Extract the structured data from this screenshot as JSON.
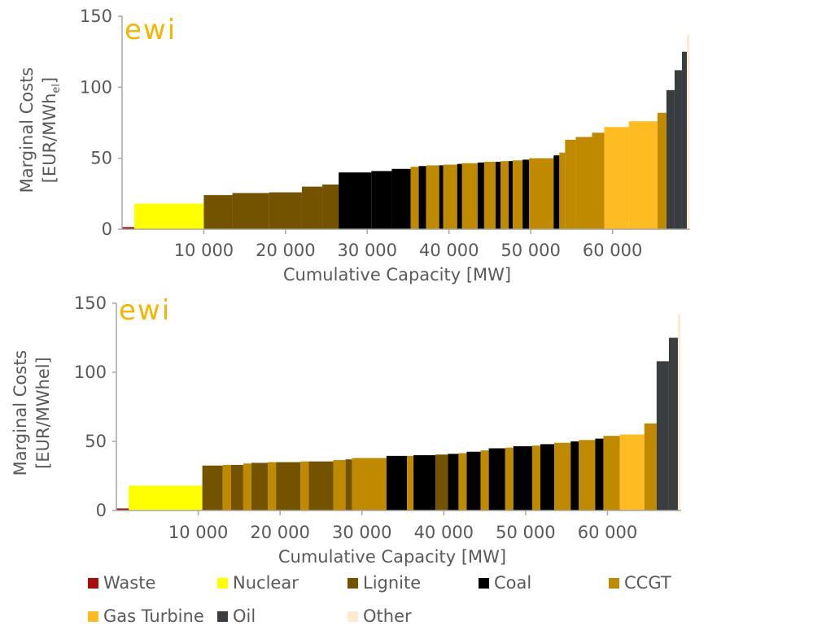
{
  "logo_text": "ewi",
  "colors": {
    "Waste": "#a50f0f",
    "Nuclear": "#ffff00",
    "Lignite": "#745300",
    "Coal": "#000000",
    "CCGT": "#c08a00",
    "Gas Turbine": "#ffbc22",
    "Oil": "#3a3d40",
    "Other": "#fcebd0"
  },
  "legend": [
    "Waste",
    "Nuclear",
    "Lignite",
    "Coal",
    "CCGT",
    "Gas Turbine",
    "Oil",
    "Other"
  ],
  "chart_data": [
    {
      "type": "bar",
      "xlabel": "Cumulative Capacity [MW]",
      "ylabel_line1": "Marginal Costs",
      "ylabel_line2_base": "[EUR/MWh",
      "ylabel_line2_sub": "el",
      "ylabel_line2_end": "]",
      "xlim": [
        0,
        69500
      ],
      "ylim": [
        0,
        150
      ],
      "xticks": [
        10000,
        20000,
        30000,
        40000,
        50000,
        60000
      ],
      "xtick_labels": [
        "10 000",
        "20 000",
        "30 000",
        "40 000",
        "50 000",
        "60 000"
      ],
      "yticks": [
        0,
        50,
        100,
        150
      ],
      "ytick_labels": [
        "0",
        "50",
        "100",
        "150"
      ],
      "segments": [
        {
          "x0": 0,
          "x1": 1500,
          "y": 1.5,
          "type": "Waste"
        },
        {
          "x0": 1500,
          "x1": 10000,
          "y": 18,
          "type": "Nuclear"
        },
        {
          "x0": 10000,
          "x1": 13500,
          "y": 24,
          "type": "Lignite"
        },
        {
          "x0": 13500,
          "x1": 18000,
          "y": 25.5,
          "type": "Lignite"
        },
        {
          "x0": 18000,
          "x1": 22000,
          "y": 26,
          "type": "Lignite"
        },
        {
          "x0": 22000,
          "x1": 24500,
          "y": 30,
          "type": "Lignite"
        },
        {
          "x0": 24500,
          "x1": 26500,
          "y": 31.5,
          "type": "Lignite"
        },
        {
          "x0": 26500,
          "x1": 30500,
          "y": 40,
          "type": "Coal"
        },
        {
          "x0": 30500,
          "x1": 33000,
          "y": 41,
          "type": "Coal"
        },
        {
          "x0": 33000,
          "x1": 35300,
          "y": 42.5,
          "type": "Coal"
        },
        {
          "x0": 35300,
          "x1": 36300,
          "y": 44,
          "type": "CCGT"
        },
        {
          "x0": 36300,
          "x1": 37200,
          "y": 44.5,
          "type": "Coal"
        },
        {
          "x0": 37200,
          "x1": 38800,
          "y": 45,
          "type": "CCGT"
        },
        {
          "x0": 38800,
          "x1": 39300,
          "y": 45,
          "type": "Coal"
        },
        {
          "x0": 39300,
          "x1": 41000,
          "y": 45.5,
          "type": "CCGT"
        },
        {
          "x0": 41000,
          "x1": 41600,
          "y": 46,
          "type": "Coal"
        },
        {
          "x0": 41600,
          "x1": 43500,
          "y": 46.5,
          "type": "CCGT"
        },
        {
          "x0": 43500,
          "x1": 44300,
          "y": 47,
          "type": "Coal"
        },
        {
          "x0": 44300,
          "x1": 45700,
          "y": 47.5,
          "type": "CCGT"
        },
        {
          "x0": 45700,
          "x1": 46300,
          "y": 47.5,
          "type": "Coal"
        },
        {
          "x0": 46300,
          "x1": 47300,
          "y": 48,
          "type": "CCGT"
        },
        {
          "x0": 47300,
          "x1": 47800,
          "y": 48,
          "type": "Coal"
        },
        {
          "x0": 47800,
          "x1": 49000,
          "y": 48.5,
          "type": "CCGT"
        },
        {
          "x0": 49000,
          "x1": 49800,
          "y": 49,
          "type": "Coal"
        },
        {
          "x0": 49800,
          "x1": 52800,
          "y": 50,
          "type": "CCGT"
        },
        {
          "x0": 52800,
          "x1": 53500,
          "y": 52,
          "type": "Coal"
        },
        {
          "x0": 53500,
          "x1": 54200,
          "y": 54,
          "type": "CCGT"
        },
        {
          "x0": 54200,
          "x1": 55500,
          "y": 63,
          "type": "CCGT"
        },
        {
          "x0": 55500,
          "x1": 57500,
          "y": 65,
          "type": "CCGT"
        },
        {
          "x0": 57500,
          "x1": 59000,
          "y": 68,
          "type": "CCGT"
        },
        {
          "x0": 59000,
          "x1": 62000,
          "y": 72,
          "type": "Gas Turbine"
        },
        {
          "x0": 62000,
          "x1": 65500,
          "y": 76,
          "type": "Gas Turbine"
        },
        {
          "x0": 65500,
          "x1": 66600,
          "y": 82,
          "type": "CCGT"
        },
        {
          "x0": 66600,
          "x1": 67600,
          "y": 98,
          "type": "Oil"
        },
        {
          "x0": 67600,
          "x1": 68500,
          "y": 112,
          "type": "Oil"
        },
        {
          "x0": 68500,
          "x1": 69100,
          "y": 125,
          "type": "Oil"
        },
        {
          "x0": 69100,
          "x1": 69400,
          "y": 137,
          "type": "Other"
        }
      ]
    },
    {
      "type": "bar",
      "xlabel": "Cumulative Capacity [MW]",
      "ylabel_line1": "Marginal Costs",
      "ylabel_line2_base": "[EUR/MWhel]",
      "ylabel_line2_sub": "",
      "ylabel_line2_end": "",
      "xlim": [
        0,
        69000
      ],
      "ylim": [
        0,
        150
      ],
      "xticks": [
        10000,
        20000,
        30000,
        40000,
        50000,
        60000
      ],
      "xtick_labels": [
        "10 000",
        "20 000",
        "30 000",
        "40 000",
        "50 000",
        "60 000"
      ],
      "yticks": [
        0,
        50,
        100,
        150
      ],
      "ytick_labels": [
        "0",
        "50",
        "100",
        "150"
      ],
      "segments": [
        {
          "x0": 0,
          "x1": 1500,
          "y": 1.5,
          "type": "Waste"
        },
        {
          "x0": 1500,
          "x1": 10500,
          "y": 18,
          "type": "Nuclear"
        },
        {
          "x0": 10500,
          "x1": 13000,
          "y": 32.5,
          "type": "Lignite"
        },
        {
          "x0": 13000,
          "x1": 14000,
          "y": 33,
          "type": "CCGT"
        },
        {
          "x0": 14000,
          "x1": 15500,
          "y": 33,
          "type": "Lignite"
        },
        {
          "x0": 15500,
          "x1": 16500,
          "y": 34,
          "type": "CCGT"
        },
        {
          "x0": 16500,
          "x1": 18500,
          "y": 34.5,
          "type": "Lignite"
        },
        {
          "x0": 18500,
          "x1": 19500,
          "y": 35,
          "type": "CCGT"
        },
        {
          "x0": 19500,
          "x1": 22500,
          "y": 35,
          "type": "Lignite"
        },
        {
          "x0": 22500,
          "x1": 23500,
          "y": 35.5,
          "type": "CCGT"
        },
        {
          "x0": 23500,
          "x1": 26500,
          "y": 35.5,
          "type": "Lignite"
        },
        {
          "x0": 26500,
          "x1": 28000,
          "y": 36.5,
          "type": "CCGT"
        },
        {
          "x0": 28000,
          "x1": 28800,
          "y": 37,
          "type": "Lignite"
        },
        {
          "x0": 28800,
          "x1": 33000,
          "y": 38,
          "type": "CCGT"
        },
        {
          "x0": 33000,
          "x1": 35500,
          "y": 39.5,
          "type": "Coal"
        },
        {
          "x0": 35500,
          "x1": 36300,
          "y": 39.5,
          "type": "CCGT"
        },
        {
          "x0": 36300,
          "x1": 39000,
          "y": 40,
          "type": "Coal"
        },
        {
          "x0": 39000,
          "x1": 40500,
          "y": 40.5,
          "type": "Lignite"
        },
        {
          "x0": 40500,
          "x1": 41800,
          "y": 41,
          "type": "Coal"
        },
        {
          "x0": 41800,
          "x1": 42800,
          "y": 41.5,
          "type": "CCGT"
        },
        {
          "x0": 42800,
          "x1": 44500,
          "y": 42.5,
          "type": "Coal"
        },
        {
          "x0": 44500,
          "x1": 45500,
          "y": 43.5,
          "type": "CCGT"
        },
        {
          "x0": 45500,
          "x1": 47500,
          "y": 45,
          "type": "Coal"
        },
        {
          "x0": 47500,
          "x1": 48500,
          "y": 45.5,
          "type": "CCGT"
        },
        {
          "x0": 48500,
          "x1": 50800,
          "y": 46.5,
          "type": "Coal"
        },
        {
          "x0": 50800,
          "x1": 51800,
          "y": 47,
          "type": "CCGT"
        },
        {
          "x0": 51800,
          "x1": 53500,
          "y": 48,
          "type": "Coal"
        },
        {
          "x0": 53500,
          "x1": 55500,
          "y": 49,
          "type": "CCGT"
        },
        {
          "x0": 55500,
          "x1": 56500,
          "y": 50,
          "type": "Coal"
        },
        {
          "x0": 56500,
          "x1": 58500,
          "y": 51,
          "type": "CCGT"
        },
        {
          "x0": 58500,
          "x1": 59500,
          "y": 52,
          "type": "Coal"
        },
        {
          "x0": 59500,
          "x1": 61500,
          "y": 54,
          "type": "CCGT"
        },
        {
          "x0": 61500,
          "x1": 64500,
          "y": 55,
          "type": "Gas Turbine"
        },
        {
          "x0": 64500,
          "x1": 66000,
          "y": 63,
          "type": "CCGT"
        },
        {
          "x0": 66000,
          "x1": 67500,
          "y": 108,
          "type": "Oil"
        },
        {
          "x0": 67500,
          "x1": 68600,
          "y": 125,
          "type": "Oil"
        },
        {
          "x0": 68600,
          "x1": 68900,
          "y": 142,
          "type": "Other"
        }
      ]
    }
  ]
}
